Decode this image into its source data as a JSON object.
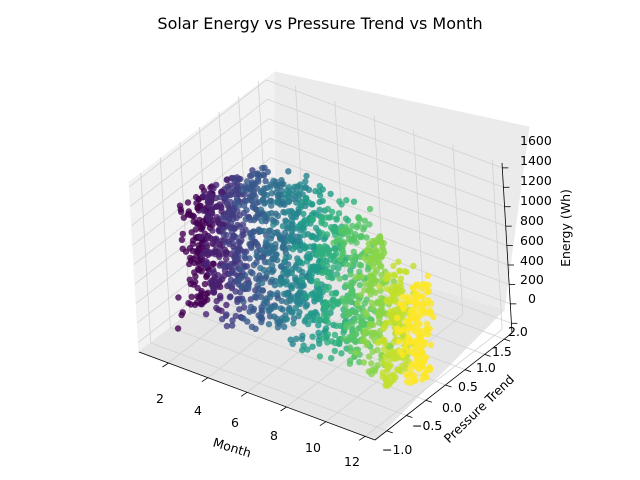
{
  "chart_data": {
    "type": "scatter3d",
    "title": "Solar Energy vs Pressure Trend vs Month",
    "xlabel": "Month",
    "ylabel": "Pressure Trend",
    "zlabel": "Energy (Wh)",
    "xlim": [
      0.5,
      12.5
    ],
    "ylim": [
      -1.3,
      2.2
    ],
    "zlim": [
      -100,
      1650
    ],
    "xticks": [
      "2",
      "4",
      "6",
      "8",
      "10",
      "12"
    ],
    "yticks": [
      "−1.0",
      "−0.5",
      "0.0",
      "0.5",
      "1.0",
      "1.5",
      "2.0"
    ],
    "zticks": [
      "0",
      "200",
      "400",
      "600",
      "800",
      "1000",
      "1200",
      "1400",
      "1600"
    ],
    "colormap": "viridis",
    "grid": true,
    "series": [
      {
        "month": 1,
        "energy_range": [
          0,
          1150
        ],
        "pressure_range": [
          -0.6,
          0.8
        ]
      },
      {
        "month": 2,
        "energy_range": [
          0,
          1300
        ],
        "pressure_range": [
          -0.6,
          0.8
        ]
      },
      {
        "month": 3,
        "energy_range": [
          0,
          1450
        ],
        "pressure_range": [
          -0.6,
          0.8
        ]
      },
      {
        "month": 4,
        "energy_range": [
          0,
          1550
        ],
        "pressure_range": [
          -0.6,
          0.8
        ]
      },
      {
        "month": 5,
        "energy_range": [
          0,
          1550
        ],
        "pressure_range": [
          -0.6,
          0.8
        ]
      },
      {
        "month": 6,
        "energy_range": [
          0,
          1600
        ],
        "pressure_range": [
          -0.6,
          0.8
        ]
      },
      {
        "month": 7,
        "energy_range": [
          0,
          1600
        ],
        "pressure_range": [
          -0.6,
          0.8
        ]
      },
      {
        "month": 8,
        "energy_range": [
          0,
          1550
        ],
        "pressure_range": [
          -0.6,
          0.8
        ]
      },
      {
        "month": 9,
        "energy_range": [
          0,
          1450
        ],
        "pressure_range": [
          -0.6,
          0.8
        ]
      },
      {
        "month": 10,
        "energy_range": [
          0,
          1350
        ],
        "pressure_range": [
          -0.6,
          0.8
        ]
      },
      {
        "month": 11,
        "energy_range": [
          0,
          1150
        ],
        "pressure_range": [
          -0.6,
          0.8
        ]
      },
      {
        "month": 12,
        "energy_range": [
          0,
          1000
        ],
        "pressure_range": [
          -0.6,
          0.8
        ]
      }
    ]
  }
}
